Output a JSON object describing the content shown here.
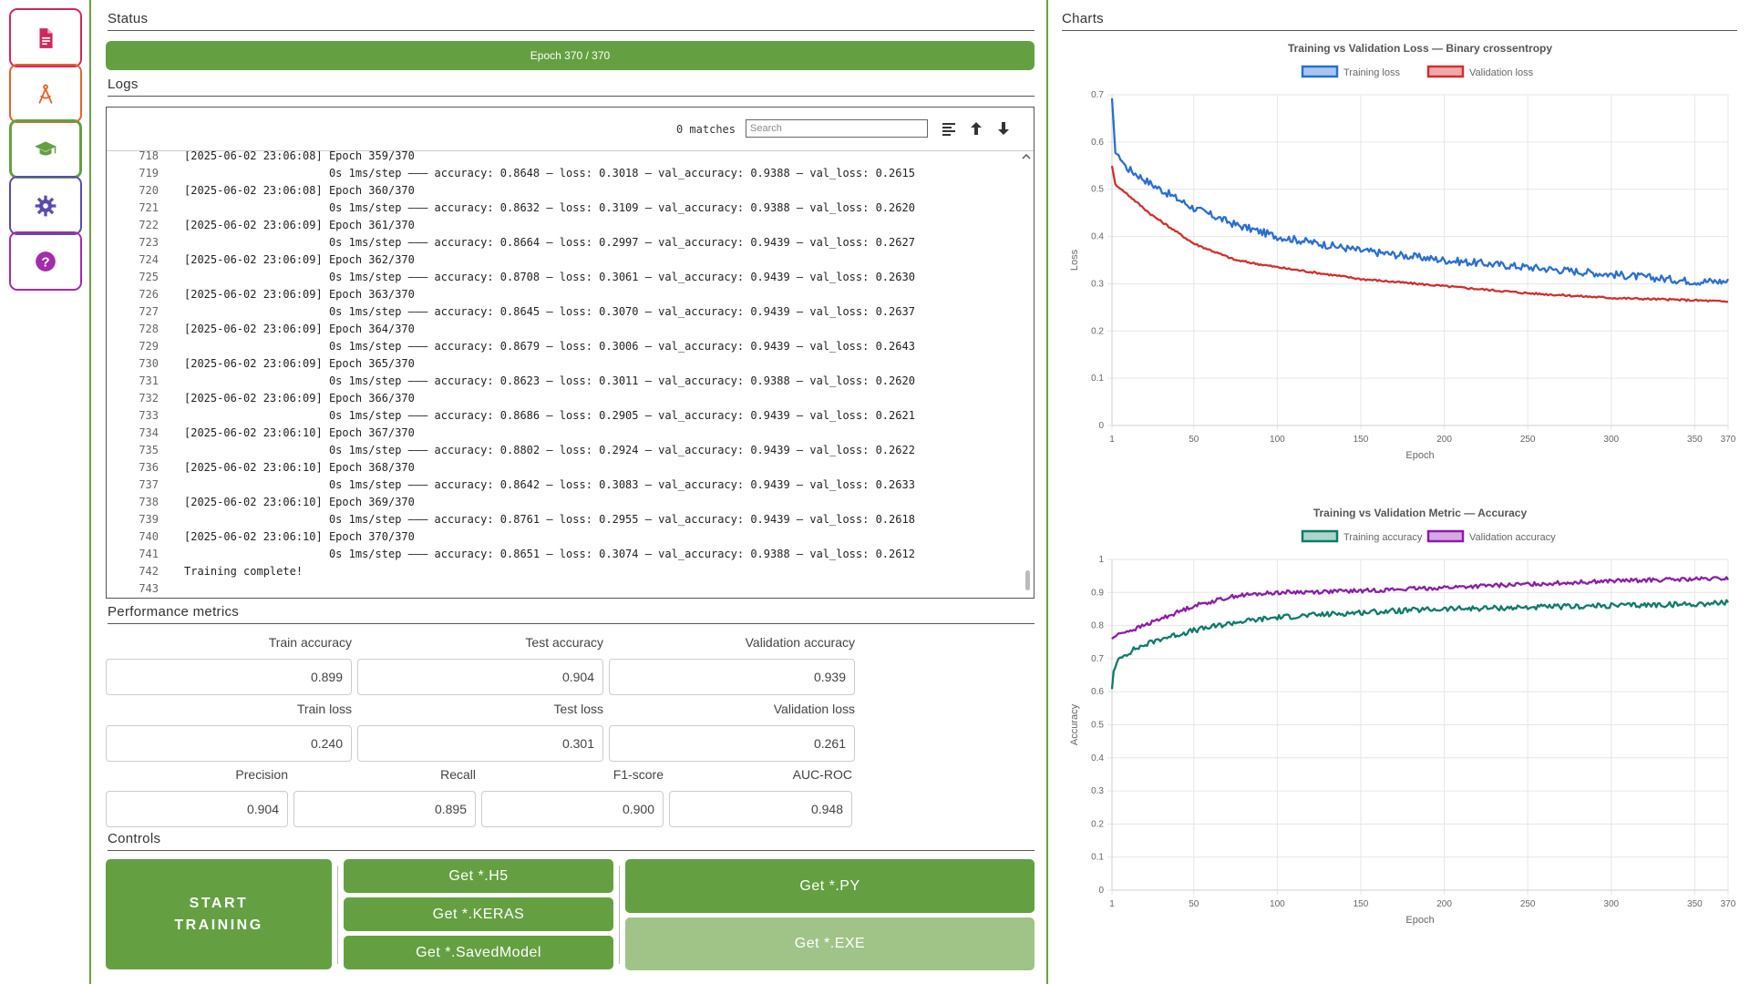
{
  "colors": {
    "accent": "#64a042",
    "accent_disabled": "#a0c488"
  },
  "sidebar": {
    "items": [
      {
        "name": "document",
        "icon": "document-icon",
        "color": "#d0275c",
        "active": false
      },
      {
        "name": "model",
        "icon": "compass-icon",
        "color": "#e8612c",
        "active": false
      },
      {
        "name": "training",
        "icon": "graduation-cap-icon",
        "color": "#64a042",
        "active": true
      },
      {
        "name": "settings",
        "icon": "gear-icon",
        "color": "#5a4bb0",
        "active": false
      },
      {
        "name": "help",
        "icon": "help-icon",
        "color": "#a32caa",
        "active": false
      }
    ]
  },
  "status": {
    "title": "Status",
    "progress_text": "Epoch 370 / 370",
    "progress": 1.0
  },
  "logs": {
    "title": "Logs",
    "match_count": "0 matches",
    "search_placeholder": "Search",
    "lines": [
      {
        "n": "718",
        "t": "[2025-06-02 23:06:08] Epoch 359/370"
      },
      {
        "n": "719",
        "t": "                      0s 1ms/step ——— accuracy: 0.8648 — loss: 0.3018 — val_accuracy: 0.9388 — val_loss: 0.2615"
      },
      {
        "n": "720",
        "t": "[2025-06-02 23:06:08] Epoch 360/370"
      },
      {
        "n": "721",
        "t": "                      0s 1ms/step ——— accuracy: 0.8632 — loss: 0.3109 — val_accuracy: 0.9388 — val_loss: 0.2620"
      },
      {
        "n": "722",
        "t": "[2025-06-02 23:06:09] Epoch 361/370"
      },
      {
        "n": "723",
        "t": "                      0s 1ms/step ——— accuracy: 0.8664 — loss: 0.2997 — val_accuracy: 0.9439 — val_loss: 0.2627"
      },
      {
        "n": "724",
        "t": "[2025-06-02 23:06:09] Epoch 362/370"
      },
      {
        "n": "725",
        "t": "                      0s 1ms/step ——— accuracy: 0.8708 — loss: 0.3061 — val_accuracy: 0.9439 — val_loss: 0.2630"
      },
      {
        "n": "726",
        "t": "[2025-06-02 23:06:09] Epoch 363/370"
      },
      {
        "n": "727",
        "t": "                      0s 1ms/step ——— accuracy: 0.8645 — loss: 0.3070 — val_accuracy: 0.9439 — val_loss: 0.2637"
      },
      {
        "n": "728",
        "t": "[2025-06-02 23:06:09] Epoch 364/370"
      },
      {
        "n": "729",
        "t": "                      0s 1ms/step ——— accuracy: 0.8679 — loss: 0.3006 — val_accuracy: 0.9439 — val_loss: 0.2643"
      },
      {
        "n": "730",
        "t": "[2025-06-02 23:06:09] Epoch 365/370"
      },
      {
        "n": "731",
        "t": "                      0s 1ms/step ——— accuracy: 0.8623 — loss: 0.3011 — val_accuracy: 0.9388 — val_loss: 0.2620"
      },
      {
        "n": "732",
        "t": "[2025-06-02 23:06:09] Epoch 366/370"
      },
      {
        "n": "733",
        "t": "                      0s 1ms/step ——— accuracy: 0.8686 — loss: 0.2905 — val_accuracy: 0.9439 — val_loss: 0.2621"
      },
      {
        "n": "734",
        "t": "[2025-06-02 23:06:10] Epoch 367/370"
      },
      {
        "n": "735",
        "t": "                      0s 1ms/step ——— accuracy: 0.8802 — loss: 0.2924 — val_accuracy: 0.9439 — val_loss: 0.2622"
      },
      {
        "n": "736",
        "t": "[2025-06-02 23:06:10] Epoch 368/370"
      },
      {
        "n": "737",
        "t": "                      0s 1ms/step ——— accuracy: 0.8642 — loss: 0.3083 — val_accuracy: 0.9439 — val_loss: 0.2633"
      },
      {
        "n": "738",
        "t": "[2025-06-02 23:06:10] Epoch 369/370"
      },
      {
        "n": "739",
        "t": "                      0s 1ms/step ——— accuracy: 0.8761 — loss: 0.2955 — val_accuracy: 0.9439 — val_loss: 0.2618"
      },
      {
        "n": "740",
        "t": "[2025-06-02 23:06:10] Epoch 370/370"
      },
      {
        "n": "741",
        "t": "                      0s 1ms/step ——— accuracy: 0.8651 — loss: 0.3074 — val_accuracy: 0.9388 — val_loss: 0.2612"
      },
      {
        "n": "742",
        "t": "Training complete!"
      },
      {
        "n": "743",
        "t": ""
      }
    ]
  },
  "metrics": {
    "title": "Performance metrics",
    "row1": [
      {
        "label": "Train accuracy",
        "value": "0.899"
      },
      {
        "label": "Test accuracy",
        "value": "0.904"
      },
      {
        "label": "Validation accuracy",
        "value": "0.939"
      }
    ],
    "row2": [
      {
        "label": "Train loss",
        "value": "0.240"
      },
      {
        "label": "Test loss",
        "value": "0.301"
      },
      {
        "label": "Validation loss",
        "value": "0.261"
      }
    ],
    "row3": [
      {
        "label": "Precision",
        "value": "0.904"
      },
      {
        "label": "Recall",
        "value": "0.895"
      },
      {
        "label": "F1-score",
        "value": "0.900"
      },
      {
        "label": "AUC-ROC",
        "value": "0.948"
      }
    ]
  },
  "controls": {
    "title": "Controls",
    "start_line1": "START",
    "start_line2": "TRAINING",
    "get_h5": "Get *.H5",
    "get_keras": "Get *.KERAS",
    "get_savedmodel": "Get *.SavedModel",
    "get_py": "Get *.PY",
    "get_exe": "Get *.EXE"
  },
  "charts": {
    "title": "Charts"
  },
  "chart_data": [
    {
      "type": "line",
      "title": "Training vs Validation Loss — Binary crossentropy",
      "xlabel": "Epoch",
      "ylabel": "Loss",
      "xlim": [
        1,
        370
      ],
      "ylim": [
        0,
        0.7
      ],
      "xticks": [
        1,
        50,
        100,
        150,
        200,
        250,
        300,
        350,
        370
      ],
      "yticks": [
        0,
        0.1,
        0.2,
        0.3,
        0.4,
        0.5,
        0.6,
        0.7
      ],
      "grid": true,
      "legend": "top-center",
      "series": [
        {
          "name": "Training loss",
          "color": "#2a6fd0",
          "fill": "#a9c6ef",
          "x": [
            1,
            3,
            10,
            25,
            50,
            75,
            100,
            150,
            200,
            250,
            300,
            350,
            370
          ],
          "y": [
            0.69,
            0.58,
            0.545,
            0.51,
            0.46,
            0.425,
            0.4,
            0.37,
            0.35,
            0.335,
            0.32,
            0.305,
            0.305
          ]
        },
        {
          "name": "Validation loss",
          "color": "#d03030",
          "fill": "#f0a8a8",
          "x": [
            1,
            3,
            10,
            25,
            50,
            75,
            100,
            150,
            200,
            250,
            300,
            350,
            370
          ],
          "y": [
            0.55,
            0.51,
            0.49,
            0.445,
            0.385,
            0.35,
            0.335,
            0.31,
            0.295,
            0.28,
            0.27,
            0.265,
            0.262
          ]
        }
      ]
    },
    {
      "type": "line",
      "title": "Training vs Validation Metric — Accuracy",
      "xlabel": "Epoch",
      "ylabel": "Accuracy",
      "xlim": [
        1,
        370
      ],
      "ylim": [
        0,
        1.0
      ],
      "xticks": [
        1,
        50,
        100,
        150,
        200,
        250,
        300,
        350,
        370
      ],
      "yticks": [
        0,
        0.1,
        0.2,
        0.3,
        0.4,
        0.5,
        0.6,
        0.7,
        0.8,
        0.9,
        1.0
      ],
      "grid": true,
      "legend": "top-center",
      "series": [
        {
          "name": "Training accuracy",
          "color": "#0f7a6a",
          "fill": "#a8d6cc",
          "x": [
            1,
            2,
            5,
            15,
            30,
            50,
            75,
            100,
            150,
            200,
            250,
            300,
            350,
            370
          ],
          "y": [
            0.61,
            0.66,
            0.7,
            0.73,
            0.76,
            0.785,
            0.81,
            0.825,
            0.84,
            0.85,
            0.855,
            0.86,
            0.865,
            0.87
          ]
        },
        {
          "name": "Validation accuracy",
          "color": "#8a1ea6",
          "fill": "#d8a8e6",
          "x": [
            1,
            5,
            15,
            30,
            50,
            75,
            100,
            150,
            200,
            250,
            300,
            350,
            370
          ],
          "y": [
            0.76,
            0.775,
            0.79,
            0.82,
            0.86,
            0.89,
            0.9,
            0.905,
            0.915,
            0.925,
            0.935,
            0.94,
            0.942
          ]
        }
      ]
    }
  ]
}
